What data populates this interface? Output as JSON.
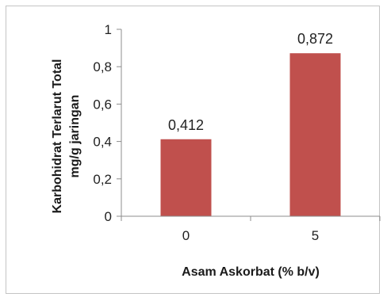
{
  "chart_data": {
    "type": "bar",
    "categories": [
      "0",
      "5"
    ],
    "values": [
      0.412,
      0.872
    ],
    "data_labels": [
      "0,412",
      "0,872"
    ],
    "xlabel": "Asam Askorbat (% b/v)",
    "ylabel_lines": [
      "Karbohidrat Terlarut Total",
      "mg/g jaringan"
    ],
    "ylim": [
      0,
      1
    ],
    "yticks": [
      0,
      0.2,
      0.4,
      0.6,
      0.8,
      1
    ],
    "ytick_labels": [
      "0",
      "0,2",
      "0,4",
      "0,6",
      "0,8",
      "1"
    ],
    "bar_color": "#c0504d",
    "grid": false,
    "legend": "none"
  }
}
